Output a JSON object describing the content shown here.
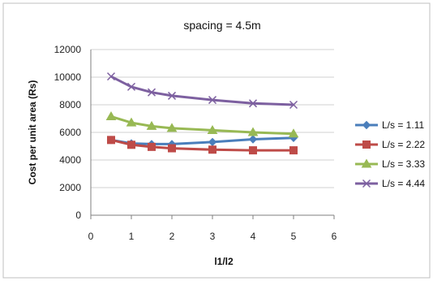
{
  "chart_data": {
    "type": "line",
    "title": "spacing = 4.5m",
    "xlabel": "l1/l2",
    "ylabel": "Cost per unit area (Rs)",
    "xlim": [
      0,
      6
    ],
    "ylim": [
      0,
      12000
    ],
    "xticks": [
      0,
      1,
      2,
      3,
      4,
      5,
      6
    ],
    "yticks": [
      0,
      2000,
      4000,
      6000,
      8000,
      10000,
      12000
    ],
    "grid": "horizontal",
    "legend_position": "right",
    "series": [
      {
        "name": "L/s = 1.11",
        "color": "#4a7ebb",
        "marker": "diamond",
        "points": [
          [
            0.5,
            5450
          ],
          [
            1,
            5200
          ],
          [
            1.5,
            5150
          ],
          [
            2,
            5150
          ],
          [
            3,
            5300
          ],
          [
            4,
            5500
          ],
          [
            5,
            5600
          ]
        ]
      },
      {
        "name": "L/s = 2.22",
        "color": "#be4b48",
        "marker": "square",
        "points": [
          [
            0.5,
            5450
          ],
          [
            1,
            5100
          ],
          [
            1.5,
            4950
          ],
          [
            2,
            4850
          ],
          [
            3,
            4750
          ],
          [
            4,
            4700
          ],
          [
            5,
            4700
          ]
        ]
      },
      {
        "name": "L/s = 3.33",
        "color": "#98b954",
        "marker": "triangle",
        "points": [
          [
            0.5,
            7150
          ],
          [
            1,
            6700
          ],
          [
            1.5,
            6450
          ],
          [
            2,
            6300
          ],
          [
            3,
            6150
          ],
          [
            4,
            6000
          ],
          [
            5,
            5900
          ]
        ]
      },
      {
        "name": "L/s = 4.44",
        "color": "#7d60a0",
        "marker": "x",
        "points": [
          [
            0.5,
            10050
          ],
          [
            1,
            9300
          ],
          [
            1.5,
            8900
          ],
          [
            2,
            8650
          ],
          [
            3,
            8350
          ],
          [
            4,
            8100
          ],
          [
            5,
            8000
          ]
        ]
      }
    ]
  }
}
